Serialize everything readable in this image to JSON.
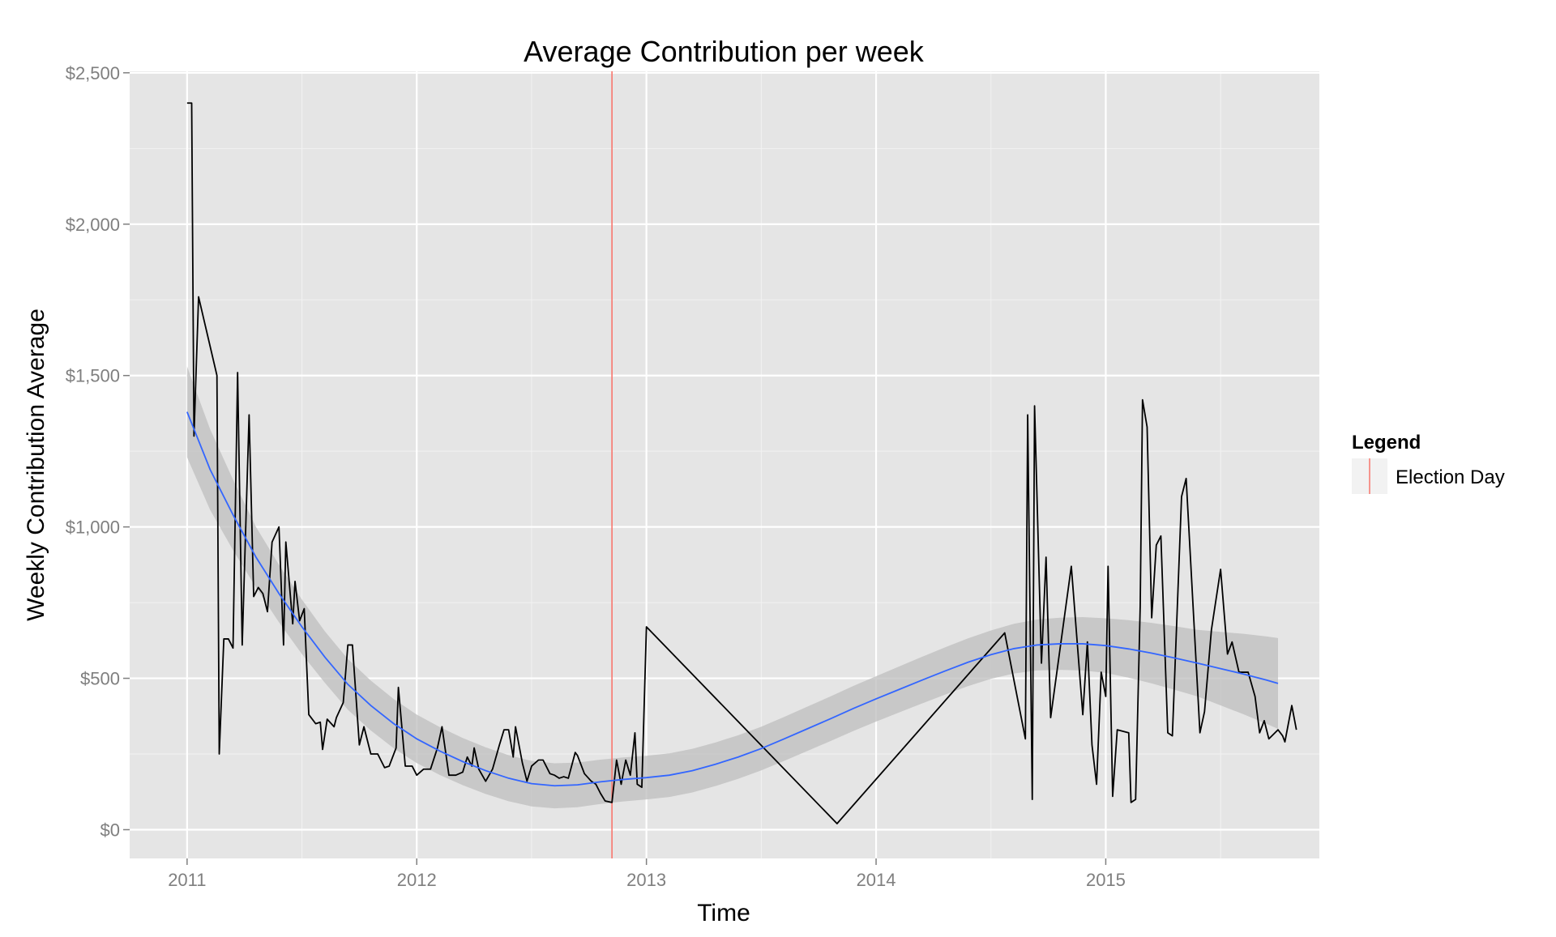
{
  "chart_data": {
    "type": "line",
    "title": "Average Contribution per week",
    "xlabel": "Time",
    "ylabel": "Weekly Contribution Average",
    "x_ticks": [
      "2011",
      "2012",
      "2013",
      "2014",
      "2015"
    ],
    "x_tick_values": [
      2011,
      2012,
      2013,
      2014,
      2015
    ],
    "y_ticks": [
      "$0",
      "$500",
      "$1,000",
      "$1,500",
      "$2,000",
      "$2,500"
    ],
    "y_tick_values": [
      0,
      500,
      1000,
      1500,
      2000,
      2500
    ],
    "xlim": [
      2010.75,
      2015.93
    ],
    "ylim": [
      -95,
      2505
    ],
    "grid": true,
    "legend": {
      "title": "Legend",
      "position": "right",
      "entries": [
        {
          "label": "Election Day",
          "color": "#F8766D"
        }
      ]
    },
    "colors": {
      "panel": "#E5E5E5",
      "grid": "#FFFFFF",
      "line": "#000000",
      "smooth": "#3366FF",
      "ribbon": "#BEBEBE",
      "election": "#F8766D"
    },
    "election_day": 2012.85,
    "series": [
      {
        "values_xy": [
          [
            2011.0,
            2400
          ],
          [
            2011.02,
            2400
          ],
          [
            2011.03,
            1300
          ],
          [
            2011.05,
            1760
          ],
          [
            2011.13,
            1500
          ],
          [
            2011.14,
            250
          ],
          [
            2011.16,
            630
          ],
          [
            2011.18,
            630
          ],
          [
            2011.2,
            600
          ],
          [
            2011.22,
            1510
          ],
          [
            2011.24,
            610
          ],
          [
            2011.27,
            1370
          ],
          [
            2011.29,
            770
          ],
          [
            2011.31,
            800
          ],
          [
            2011.33,
            780
          ],
          [
            2011.35,
            720
          ],
          [
            2011.37,
            950
          ],
          [
            2011.4,
            1000
          ],
          [
            2011.42,
            610
          ],
          [
            2011.43,
            950
          ],
          [
            2011.46,
            680
          ],
          [
            2011.47,
            820
          ],
          [
            2011.49,
            690
          ],
          [
            2011.51,
            730
          ],
          [
            2011.53,
            380
          ],
          [
            2011.56,
            350
          ],
          [
            2011.58,
            355
          ],
          [
            2011.59,
            265
          ],
          [
            2011.61,
            365
          ],
          [
            2011.64,
            340
          ],
          [
            2011.65,
            370
          ],
          [
            2011.68,
            420
          ],
          [
            2011.7,
            610
          ],
          [
            2011.72,
            610
          ],
          [
            2011.75,
            280
          ],
          [
            2011.77,
            340
          ],
          [
            2011.8,
            250
          ],
          [
            2011.83,
            250
          ],
          [
            2011.86,
            205
          ],
          [
            2011.88,
            210
          ],
          [
            2011.91,
            270
          ],
          [
            2011.92,
            470
          ],
          [
            2011.95,
            210
          ],
          [
            2011.98,
            210
          ],
          [
            2012.0,
            180
          ],
          [
            2012.03,
            200
          ],
          [
            2012.06,
            200
          ],
          [
            2012.09,
            270
          ],
          [
            2012.11,
            340
          ],
          [
            2012.14,
            180
          ],
          [
            2012.17,
            180
          ],
          [
            2012.2,
            190
          ],
          [
            2012.22,
            240
          ],
          [
            2012.24,
            210
          ],
          [
            2012.25,
            270
          ],
          [
            2012.27,
            200
          ],
          [
            2012.3,
            160
          ],
          [
            2012.33,
            200
          ],
          [
            2012.36,
            280
          ],
          [
            2012.38,
            330
          ],
          [
            2012.4,
            330
          ],
          [
            2012.42,
            240
          ],
          [
            2012.43,
            340
          ],
          [
            2012.46,
            220
          ],
          [
            2012.48,
            160
          ],
          [
            2012.5,
            210
          ],
          [
            2012.53,
            230
          ],
          [
            2012.55,
            230
          ],
          [
            2012.58,
            185
          ],
          [
            2012.6,
            180
          ],
          [
            2012.62,
            170
          ],
          [
            2012.64,
            175
          ],
          [
            2012.66,
            170
          ],
          [
            2012.69,
            255
          ],
          [
            2012.7,
            245
          ],
          [
            2012.73,
            185
          ],
          [
            2012.76,
            160
          ],
          [
            2012.78,
            150
          ],
          [
            2012.8,
            120
          ],
          [
            2012.82,
            95
          ],
          [
            2012.85,
            90
          ],
          [
            2012.87,
            230
          ],
          [
            2012.89,
            150
          ],
          [
            2012.91,
            230
          ],
          [
            2012.93,
            180
          ],
          [
            2012.95,
            320
          ],
          [
            2012.96,
            150
          ],
          [
            2012.98,
            140
          ],
          [
            2013.0,
            670
          ],
          [
            2013.83,
            20
          ],
          [
            2014.56,
            650
          ],
          [
            2014.65,
            300
          ],
          [
            2014.66,
            1370
          ],
          [
            2014.68,
            100
          ],
          [
            2014.69,
            1400
          ],
          [
            2014.72,
            550
          ],
          [
            2014.74,
            900
          ],
          [
            2014.76,
            370
          ],
          [
            2014.85,
            870
          ],
          [
            2014.9,
            380
          ],
          [
            2014.92,
            620
          ],
          [
            2014.94,
            280
          ],
          [
            2014.96,
            150
          ],
          [
            2014.98,
            520
          ],
          [
            2015.0,
            440
          ],
          [
            2015.01,
            870
          ],
          [
            2015.03,
            110
          ],
          [
            2015.05,
            330
          ],
          [
            2015.1,
            320
          ],
          [
            2015.11,
            90
          ],
          [
            2015.13,
            100
          ],
          [
            2015.15,
            740
          ],
          [
            2015.16,
            1420
          ],
          [
            2015.18,
            1330
          ],
          [
            2015.2,
            700
          ],
          [
            2015.22,
            940
          ],
          [
            2015.24,
            970
          ],
          [
            2015.27,
            320
          ],
          [
            2015.29,
            310
          ],
          [
            2015.33,
            1100
          ],
          [
            2015.35,
            1160
          ],
          [
            2015.41,
            320
          ],
          [
            2015.43,
            390
          ],
          [
            2015.46,
            660
          ],
          [
            2015.5,
            860
          ],
          [
            2015.53,
            580
          ],
          [
            2015.55,
            620
          ],
          [
            2015.58,
            520
          ],
          [
            2015.62,
            520
          ],
          [
            2015.65,
            440
          ],
          [
            2015.67,
            320
          ],
          [
            2015.69,
            360
          ],
          [
            2015.71,
            300
          ],
          [
            2015.75,
            330
          ],
          [
            2015.77,
            310
          ],
          [
            2015.78,
            290
          ],
          [
            2015.81,
            410
          ],
          [
            2015.83,
            330
          ]
        ]
      },
      {
        "values_xy": [
          [
            2011.0,
            1380
          ],
          [
            2011.1,
            1190
          ],
          [
            2011.2,
            1040
          ],
          [
            2011.3,
            900
          ],
          [
            2011.4,
            780
          ],
          [
            2011.5,
            670
          ],
          [
            2011.6,
            570
          ],
          [
            2011.7,
            480
          ],
          [
            2011.8,
            410
          ],
          [
            2011.9,
            350
          ],
          [
            2012.0,
            300
          ],
          [
            2012.1,
            260
          ],
          [
            2012.2,
            225
          ],
          [
            2012.3,
            195
          ],
          [
            2012.4,
            170
          ],
          [
            2012.5,
            152
          ],
          [
            2012.6,
            145
          ],
          [
            2012.7,
            148
          ],
          [
            2012.8,
            158
          ],
          [
            2012.9,
            166
          ],
          [
            2013.0,
            172
          ],
          [
            2013.1,
            180
          ],
          [
            2013.2,
            195
          ],
          [
            2013.3,
            216
          ],
          [
            2013.4,
            240
          ],
          [
            2013.5,
            268
          ],
          [
            2013.6,
            300
          ],
          [
            2013.7,
            333
          ],
          [
            2013.8,
            366
          ],
          [
            2013.9,
            400
          ],
          [
            2014.0,
            432
          ],
          [
            2014.1,
            463
          ],
          [
            2014.2,
            494
          ],
          [
            2014.3,
            524
          ],
          [
            2014.4,
            553
          ],
          [
            2014.5,
            578
          ],
          [
            2014.6,
            598
          ],
          [
            2014.7,
            610
          ],
          [
            2014.8,
            614
          ],
          [
            2014.9,
            614
          ],
          [
            2015.0,
            608
          ],
          [
            2015.1,
            597
          ],
          [
            2015.2,
            583
          ],
          [
            2015.3,
            567
          ],
          [
            2015.4,
            550
          ],
          [
            2015.5,
            532
          ],
          [
            2015.6,
            514
          ],
          [
            2015.7,
            494
          ],
          [
            2015.75,
            483
          ]
        ]
      }
    ],
    "ribbon_halfwidth": [
      [
        2011.0,
        150
      ],
      [
        2011.3,
        100
      ],
      [
        2011.6,
        85
      ],
      [
        2012.0,
        80
      ],
      [
        2012.5,
        75
      ],
      [
        2013.0,
        72
      ],
      [
        2013.5,
        72
      ],
      [
        2014.0,
        75
      ],
      [
        2014.5,
        80
      ],
      [
        2015.0,
        90
      ],
      [
        2015.4,
        110
      ],
      [
        2015.75,
        150
      ]
    ]
  }
}
